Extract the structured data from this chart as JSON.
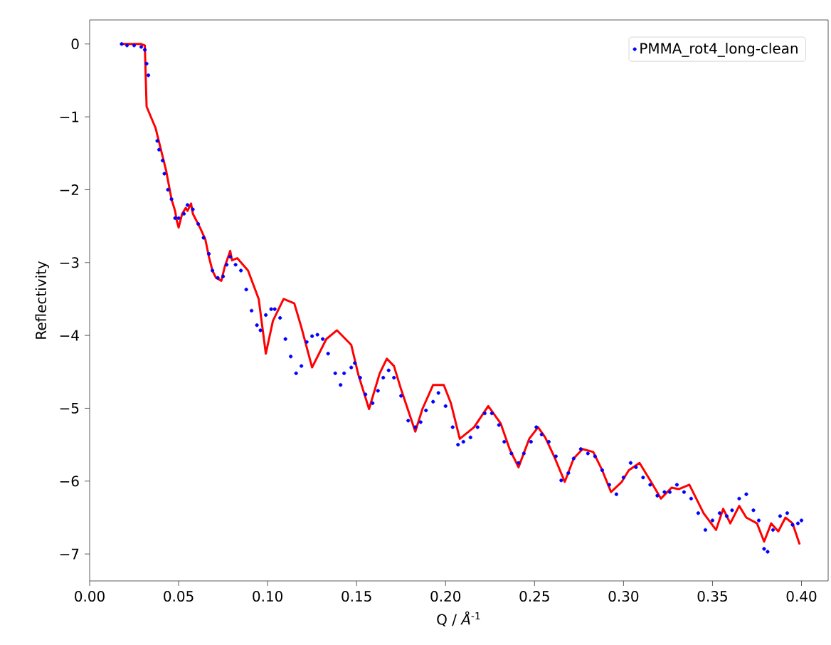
{
  "chart_data": {
    "type": "scatter",
    "xlabel": "Q / *Å*$^{-1}$",
    "ylabel": "Reflectivity",
    "xlim": [
      0,
      0.415
    ],
    "ylim": [
      -7.37,
      0.33
    ],
    "xticks": [
      {
        "value": 0,
        "label": "0.00"
      },
      {
        "value": 0.05,
        "label": "0.05"
      },
      {
        "value": 0.1,
        "label": "0.10"
      },
      {
        "value": 0.15,
        "label": "0.15"
      },
      {
        "value": 0.2,
        "label": "0.20"
      },
      {
        "value": 0.25,
        "label": "0.25"
      },
      {
        "value": 0.3,
        "label": "0.30"
      },
      {
        "value": 0.35,
        "label": "0.35"
      },
      {
        "value": 0.4,
        "label": "0.40"
      }
    ],
    "yticks": [
      {
        "value": -7,
        "label": "−7"
      },
      {
        "value": -6,
        "label": "−6"
      },
      {
        "value": -5,
        "label": "−5"
      },
      {
        "value": -4,
        "label": "−4"
      },
      {
        "value": -3,
        "label": "−3"
      },
      {
        "value": -2,
        "label": "−2"
      },
      {
        "value": -1,
        "label": "−1"
      },
      {
        "value": 0,
        "label": "0"
      }
    ],
    "legend": "top right",
    "series": [
      {
        "name": "PMMA_rot4_long-clean",
        "marker": "circle",
        "color": "#0000ff",
        "x": [
          0.018,
          0.021,
          0.025,
          0.029,
          0.031,
          0.032,
          0.033,
          0.038,
          0.039,
          0.041,
          0.042,
          0.044,
          0.046,
          0.048,
          0.05,
          0.053,
          0.055,
          0.058,
          0.061,
          0.064,
          0.067,
          0.069,
          0.072,
          0.075,
          0.077,
          0.079,
          0.082,
          0.085,
          0.088,
          0.091,
          0.094,
          0.096,
          0.099,
          0.102,
          0.104,
          0.107,
          0.11,
          0.113,
          0.116,
          0.119,
          0.122,
          0.125,
          0.128,
          0.131,
          0.134,
          0.138,
          0.141,
          0.143,
          0.147,
          0.149,
          0.152,
          0.155,
          0.159,
          0.162,
          0.165,
          0.168,
          0.171,
          0.175,
          0.179,
          0.183,
          0.186,
          0.189,
          0.193,
          0.196,
          0.2,
          0.204,
          0.207,
          0.21,
          0.214,
          0.218,
          0.222,
          0.226,
          0.23,
          0.233,
          0.237,
          0.241,
          0.244,
          0.248,
          0.251,
          0.254,
          0.258,
          0.262,
          0.265,
          0.269,
          0.272,
          0.276,
          0.28,
          0.284,
          0.288,
          0.292,
          0.296,
          0.3,
          0.304,
          0.307,
          0.311,
          0.315,
          0.319,
          0.323,
          0.326,
          0.33,
          0.334,
          0.338,
          0.342,
          0.346,
          0.35,
          0.354,
          0.358,
          0.361,
          0.365,
          0.369,
          0.373,
          0.376,
          0.379,
          0.381,
          0.384,
          0.388,
          0.392,
          0.395,
          0.398,
          0.4
        ],
        "values": [
          0.0,
          -0.02,
          -0.02,
          -0.04,
          -0.08,
          -0.27,
          -0.43,
          -1.33,
          -1.45,
          -1.6,
          -1.78,
          -2.0,
          -2.13,
          -2.39,
          -2.39,
          -2.33,
          -2.21,
          -2.27,
          -2.47,
          -2.66,
          -2.88,
          -3.11,
          -3.21,
          -3.19,
          -3.03,
          -2.92,
          -3.03,
          -3.11,
          -3.37,
          -3.66,
          -3.86,
          -3.93,
          -3.72,
          -3.64,
          -3.64,
          -3.76,
          -4.05,
          -4.29,
          -4.52,
          -4.42,
          -4.09,
          -4.01,
          -3.99,
          -4.05,
          -4.25,
          -4.52,
          -4.68,
          -4.52,
          -4.44,
          -4.38,
          -4.58,
          -4.81,
          -4.93,
          -4.76,
          -4.58,
          -4.48,
          -4.58,
          -4.83,
          -5.17,
          -5.26,
          -5.19,
          -5.03,
          -4.91,
          -4.79,
          -4.97,
          -5.26,
          -5.5,
          -5.46,
          -5.4,
          -5.26,
          -5.07,
          -5.07,
          -5.23,
          -5.46,
          -5.62,
          -5.75,
          -5.62,
          -5.46,
          -5.26,
          -5.36,
          -5.46,
          -5.66,
          -5.99,
          -5.89,
          -5.69,
          -5.56,
          -5.62,
          -5.66,
          -5.85,
          -6.05,
          -6.18,
          -5.95,
          -5.75,
          -5.81,
          -5.95,
          -6.05,
          -6.2,
          -6.15,
          -6.15,
          -6.05,
          -6.15,
          -6.24,
          -6.44,
          -6.67,
          -6.54,
          -6.44,
          -6.48,
          -6.4,
          -6.24,
          -6.18,
          -6.4,
          -6.54,
          -6.93,
          -6.97,
          -6.67,
          -6.48,
          -6.44,
          -6.6,
          -6.58,
          -6.54
        ]
      },
      {
        "type": "line",
        "line_style": "solid",
        "color": "#ff0000",
        "x": [
          0.018,
          0.029,
          0.031,
          0.032,
          0.037,
          0.043,
          0.046,
          0.048,
          0.049,
          0.05,
          0.052,
          0.054,
          0.055,
          0.057,
          0.058,
          0.062,
          0.065,
          0.067,
          0.069,
          0.071,
          0.074,
          0.076,
          0.079,
          0.08,
          0.083,
          0.089,
          0.095,
          0.099,
          0.103,
          0.109,
          0.115,
          0.119,
          0.125,
          0.133,
          0.139,
          0.147,
          0.151,
          0.157,
          0.163,
          0.167,
          0.171,
          0.175,
          0.183,
          0.187,
          0.193,
          0.199,
          0.203,
          0.208,
          0.216,
          0.224,
          0.231,
          0.236,
          0.241,
          0.247,
          0.252,
          0.256,
          0.261,
          0.267,
          0.272,
          0.277,
          0.283,
          0.288,
          0.293,
          0.299,
          0.303,
          0.309,
          0.315,
          0.321,
          0.327,
          0.331,
          0.337,
          0.345,
          0.352,
          0.356,
          0.36,
          0.365,
          0.369,
          0.375,
          0.379,
          0.383,
          0.387,
          0.391,
          0.395,
          0.399
        ],
        "values": [
          0.0,
          0.0,
          -0.02,
          -0.86,
          -1.15,
          -1.74,
          -2.13,
          -2.29,
          -2.43,
          -2.52,
          -2.33,
          -2.25,
          -2.29,
          -2.19,
          -2.33,
          -2.52,
          -2.68,
          -2.92,
          -3.11,
          -3.21,
          -3.25,
          -3.05,
          -2.84,
          -2.97,
          -2.94,
          -3.11,
          -3.5,
          -4.25,
          -3.8,
          -3.5,
          -3.56,
          -3.89,
          -4.44,
          -4.05,
          -3.93,
          -4.13,
          -4.54,
          -5.01,
          -4.52,
          -4.32,
          -4.42,
          -4.74,
          -5.32,
          -5.01,
          -4.68,
          -4.68,
          -4.93,
          -5.42,
          -5.26,
          -4.97,
          -5.21,
          -5.56,
          -5.81,
          -5.42,
          -5.26,
          -5.4,
          -5.66,
          -6.01,
          -5.69,
          -5.56,
          -5.6,
          -5.85,
          -6.15,
          -6.01,
          -5.85,
          -5.75,
          -5.99,
          -6.24,
          -6.09,
          -6.11,
          -6.05,
          -6.44,
          -6.67,
          -6.38,
          -6.58,
          -6.34,
          -6.5,
          -6.58,
          -6.83,
          -6.58,
          -6.69,
          -6.5,
          -6.58,
          -6.87
        ]
      }
    ]
  }
}
